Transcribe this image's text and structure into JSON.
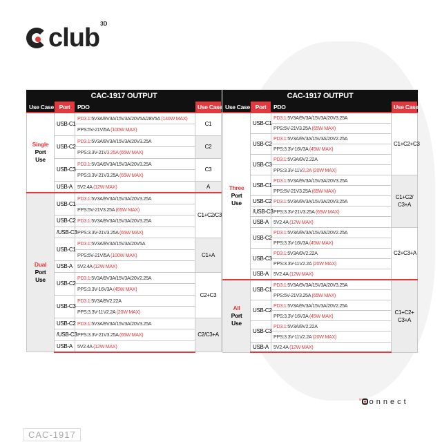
{
  "brand": {
    "logo_text": "club",
    "logo_sup": "3D",
    "connect_prefix": "w",
    "connect_text": "onnect",
    "accent_color": "#e03a3e"
  },
  "model": "CAC-1917",
  "headers": {
    "title": "CAC-1917 OUTPUT",
    "use_case": "Use Case",
    "port": "Port",
    "pdo": "PDO",
    "use_case_right": "Use Case"
  },
  "tables": [
    {
      "groups": [
        {
          "label_red": "Single",
          "label": "Port Use",
          "gray": false,
          "combos": [
            {
              "use_case": "C1",
              "gray": false,
              "ports": [
                {
                  "port": "USB-C1",
                  "lines": [
                    {
                      "pre": "PD3.1:",
                      "text": "5V3A/9V3A/15V3A/20V5A/28V5A ",
                      "red": "(140W MAX)"
                    },
                    {
                      "pre": "",
                      "text": "PPS:5V-21V/5A ",
                      "red": "(100W MAX)"
                    }
                  ]
                }
              ]
            },
            {
              "use_case": "C2",
              "gray": true,
              "ports": [
                {
                  "port": "USB-C2",
                  "lines": [
                    {
                      "pre": "PD3.1:",
                      "text": "5V3A/9V3A/15V3A/20V3.25A",
                      "red": ""
                    },
                    {
                      "pre": "",
                      "text": "PPS:3.3V-21V",
                      "red": "3.25A (65W MAX)"
                    }
                  ]
                }
              ]
            },
            {
              "use_case": "C3",
              "gray": false,
              "ports": [
                {
                  "port": "USB-C3",
                  "lines": [
                    {
                      "pre": "PD3.1:",
                      "text": "5V3A/9V3A/15V3A/20V3.25A",
                      "red": ""
                    },
                    {
                      "pre": "",
                      "text": "PPS:3.3V-21V3.25A ",
                      "red": "(65W MAX)"
                    }
                  ]
                }
              ]
            },
            {
              "use_case": "A",
              "gray": true,
              "ports": [
                {
                  "port": "USB-A",
                  "lines": [
                    {
                      "pre": "",
                      "text": "5V2.4A ",
                      "red": "(12W MAX)"
                    }
                  ]
                }
              ]
            }
          ]
        },
        {
          "label_red": "Dual",
          "label": "Port Use",
          "gray": true,
          "combos": [
            {
              "use_case": "C1+C2/C3",
              "gray": false,
              "ports": [
                {
                  "port": "USB-C1",
                  "lines": [
                    {
                      "pre": "PD3.1:",
                      "text": "5V3A/9V3A/15V3A/20V3.25A",
                      "red": ""
                    },
                    {
                      "pre": "",
                      "text": "PPS:5V-21V3.25A ",
                      "red": "(65W MAX)"
                    }
                  ]
                },
                {
                  "port": "USB-C2",
                  "lines": [
                    {
                      "pre": "PD3.1:",
                      "text": "5V3A/9V3A/15V3A/20V3.25A",
                      "red": ""
                    }
                  ]
                },
                {
                  "port": "/USB-C3",
                  "lines": [
                    {
                      "pre": "",
                      "text": "PPS:3.3V-21V3.25A ",
                      "red": "(65W MAX)"
                    }
                  ]
                }
              ]
            },
            {
              "use_case": "C1+A",
              "gray": true,
              "ports": [
                {
                  "port": "USB-C1",
                  "lines": [
                    {
                      "pre": "PD3.1:",
                      "text": "5V3A/9V3A/15V3A/20V5A",
                      "red": ""
                    },
                    {
                      "pre": "",
                      "text": "PPS:5V-21V/5A ",
                      "red": "(100W MAX)"
                    }
                  ]
                },
                {
                  "port": "USB-A",
                  "lines": [
                    {
                      "pre": "",
                      "text": "5V2.4A ",
                      "red": "(12W MAX)"
                    }
                  ]
                }
              ]
            },
            {
              "use_case": "C2+C3",
              "gray": false,
              "ports": [
                {
                  "port": "USB-C2",
                  "lines": [
                    {
                      "pre": "PD3.1:",
                      "text": "5V3A/9V3A/15V3A/20V2.25A",
                      "red": ""
                    },
                    {
                      "pre": "",
                      "text": "PPS:3.3V-16V3A ",
                      "red": "(45W MAX)"
                    }
                  ]
                },
                {
                  "port": "USB-C3",
                  "lines": [
                    {
                      "pre": "PD3.1:",
                      "text": "5V3A/9V2.22A",
                      "red": ""
                    },
                    {
                      "pre": "",
                      "text": "PPS:3.3V-11V2.2A ",
                      "red": "(20W MAX)"
                    }
                  ]
                }
              ]
            },
            {
              "use_case": "C2/C3+A",
              "gray": true,
              "ports": [
                {
                  "port": "USB-C2",
                  "lines": [
                    {
                      "pre": "PD3.1:",
                      "text": "5V3A/9V3A/15V3A/20V3.25A",
                      "red": ""
                    }
                  ]
                },
                {
                  "port": "/USB-C3",
                  "lines": [
                    {
                      "pre": "",
                      "text": "PPS:3.3V-21V3.25A ",
                      "red": "(65W MAX)"
                    }
                  ]
                },
                {
                  "port": "USB-A",
                  "lines": [
                    {
                      "pre": "",
                      "text": "5V2.4A ",
                      "red": "(12W MAX)"
                    }
                  ]
                }
              ]
            }
          ]
        }
      ]
    },
    {
      "groups": [
        {
          "label_red": "Three",
          "label": "Port Use",
          "gray": false,
          "combos": [
            {
              "use_case": "C1+C2+C3",
              "gray": false,
              "ports": [
                {
                  "port": "USB-C1",
                  "lines": [
                    {
                      "pre": "PD3.1:",
                      "text": "5V3A/9V3A/15V3A/20V3.25A",
                      "red": ""
                    },
                    {
                      "pre": "",
                      "text": "PPS:5V-21V3.25A ",
                      "red": "(65W MAX)"
                    }
                  ]
                },
                {
                  "port": "USB-C2",
                  "lines": [
                    {
                      "pre": "PD3.1:",
                      "text": "5V3A/9V3A/15V3A/20V2.25A",
                      "red": ""
                    },
                    {
                      "pre": "",
                      "text": "PPS:3.3V-16V3A ",
                      "red": "(45W MAX)"
                    }
                  ]
                },
                {
                  "port": "USB-C3",
                  "lines": [
                    {
                      "pre": "PD3.1:",
                      "text": "5V3A/9V2.22A",
                      "red": ""
                    },
                    {
                      "pre": "",
                      "text": "PPS:3.3V-11V",
                      "red": "2.2A (20W MAX)"
                    }
                  ]
                }
              ]
            },
            {
              "use_case": "C1+C2/ C3+A",
              "gray": true,
              "ports": [
                {
                  "port": "USB-C1",
                  "lines": [
                    {
                      "pre": "PD3.1:",
                      "text": "5V3A/9V3A/15V3A/20V3.25A",
                      "red": ""
                    },
                    {
                      "pre": "",
                      "text": "PPS:5V-21V3.25A ",
                      "red": "(65W MAX)"
                    }
                  ]
                },
                {
                  "port": "USB-C2",
                  "lines": [
                    {
                      "pre": "PD3.1:",
                      "text": "5V3A/9V3A/15V3A/20V3.25A",
                      "red": ""
                    }
                  ]
                },
                {
                  "port": "/USB-C3",
                  "lines": [
                    {
                      "pre": "",
                      "text": "PPS:3.3V-21V3.25A ",
                      "red": "(65W MAX)"
                    }
                  ]
                },
                {
                  "port": "USB-A",
                  "lines": [
                    {
                      "pre": "",
                      "text": "5V2.4A ",
                      "red": "(12W MAX)"
                    }
                  ]
                }
              ]
            },
            {
              "use_case": "C2+C3+A",
              "gray": false,
              "ports": [
                {
                  "port": "USB-C2",
                  "lines": [
                    {
                      "pre": "PD3.1:",
                      "text": "5V3A/9V3A/15V3A/20V2.25A",
                      "red": ""
                    },
                    {
                      "pre": "",
                      "text": "PPS:3.3V-16V3A ",
                      "red": "(45W MAX)"
                    }
                  ]
                },
                {
                  "port": "USB-C3",
                  "lines": [
                    {
                      "pre": "PD3.1:",
                      "text": "5V3A/9V2.22A",
                      "red": ""
                    },
                    {
                      "pre": "",
                      "text": "PPS:3.3V-11V2.2A ",
                      "red": "(20W MAX)"
                    }
                  ]
                },
                {
                  "port": "USB-A",
                  "lines": [
                    {
                      "pre": "",
                      "text": "5V2.4A ",
                      "red": "(12W MAX)"
                    }
                  ]
                }
              ]
            }
          ]
        },
        {
          "label_red": "All",
          "label": "Port Use",
          "gray": true,
          "combos": [
            {
              "use_case": "C1+C2+ C3+A",
              "gray": true,
              "ports": [
                {
                  "port": "USB-C1",
                  "lines": [
                    {
                      "pre": "PD3.1:",
                      "text": "5V3A/9V3A/15V3A/20V3.25A",
                      "red": ""
                    },
                    {
                      "pre": "",
                      "text": "PPS:5V-21V3.25A ",
                      "red": "(65W MAX)"
                    }
                  ]
                },
                {
                  "port": "USB-C2",
                  "lines": [
                    {
                      "pre": "PD3.1:",
                      "text": "5V3A/9V3A/15V3A/20V2.25A",
                      "red": ""
                    },
                    {
                      "pre": "",
                      "text": "PPS:3.3V-16V3A ",
                      "red": "(45W MAX)"
                    }
                  ]
                },
                {
                  "port": "USB-C3",
                  "lines": [
                    {
                      "pre": "PD3.1:",
                      "text": "5V3A/9V2.22A",
                      "red": ""
                    },
                    {
                      "pre": "",
                      "text": "PPS:3.3V-11V2.2A ",
                      "red": "(20W MAX)"
                    }
                  ]
                },
                {
                  "port": "USB-A",
                  "lines": [
                    {
                      "pre": "",
                      "text": "5V2.4A ",
                      "red": "(12W MAX)"
                    }
                  ]
                }
              ]
            }
          ]
        }
      ]
    }
  ]
}
